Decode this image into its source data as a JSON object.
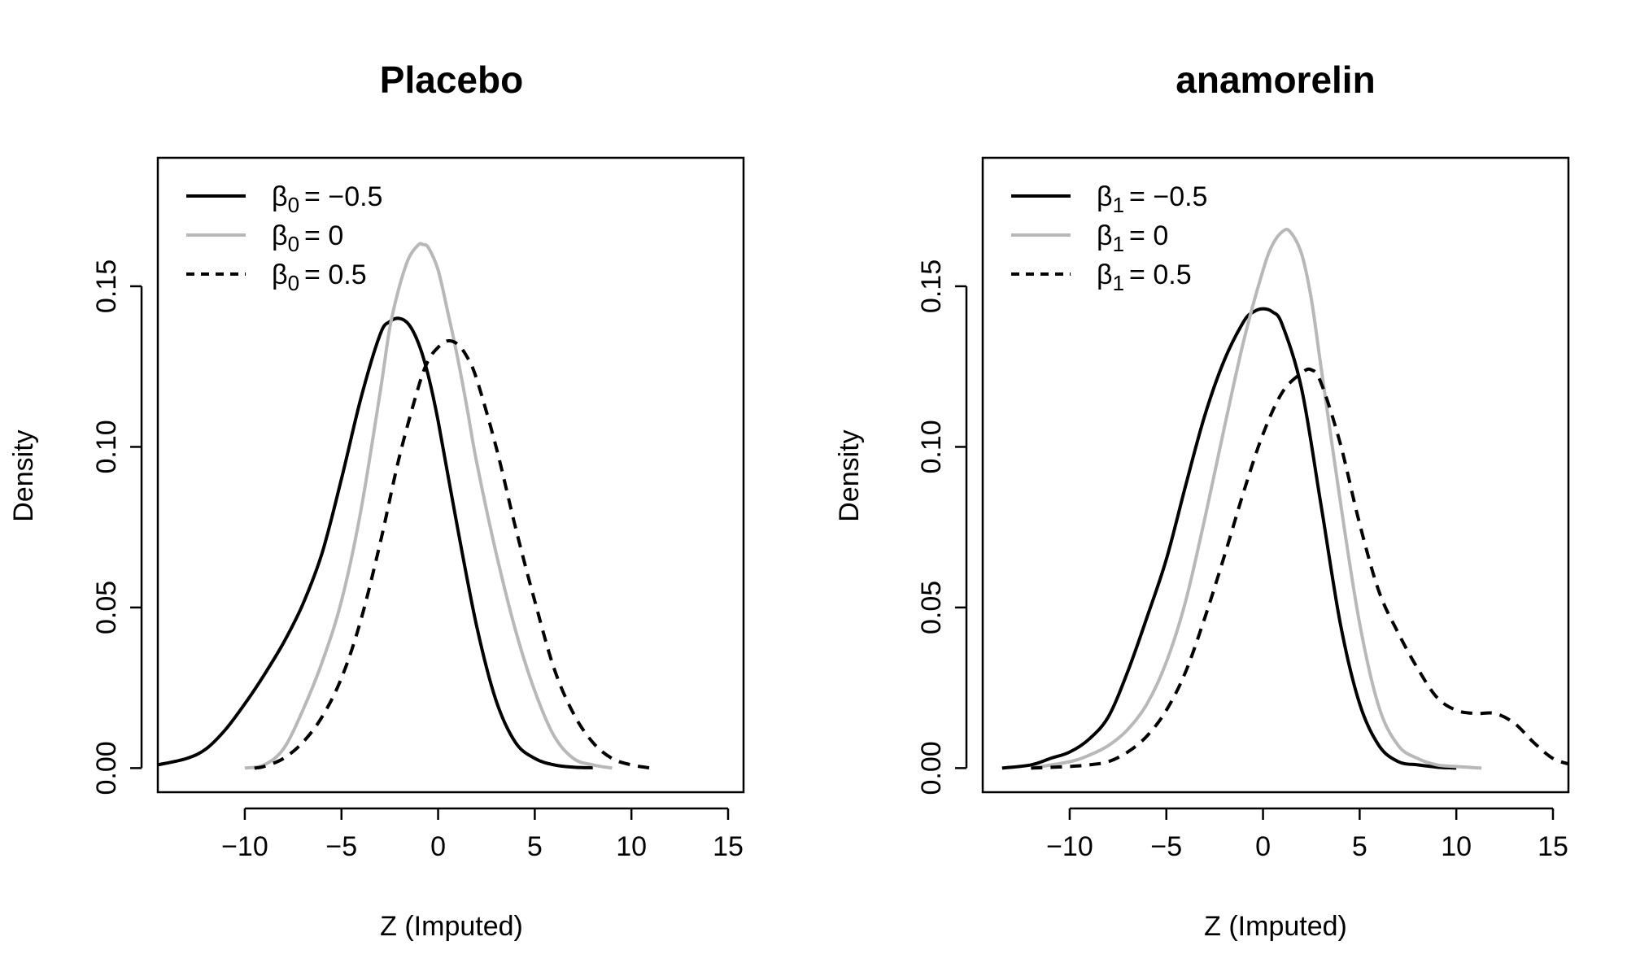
{
  "figure": {
    "background": "#ffffff"
  },
  "chart_data": [
    {
      "type": "line",
      "title": "Placebo",
      "xlabel": "Z (Imputed)",
      "ylabel": "Density",
      "xlim": [
        -14.5,
        15.8
      ],
      "ylim": [
        -0.0075,
        0.19
      ],
      "xticks": [
        -10,
        -5,
        0,
        5,
        10,
        15
      ],
      "xtick_labels": [
        "−10",
        "−5",
        "0",
        "5",
        "10",
        "15"
      ],
      "yticks": [
        0.0,
        0.05,
        0.1,
        0.15
      ],
      "ytick_labels": [
        "0.00",
        "0.05",
        "0.10",
        "0.15"
      ],
      "legend": {
        "position": "top-left"
      },
      "series": [
        {
          "name": "β₀ = −0.5",
          "legend_symbol": "β",
          "legend_sub": "0",
          "legend_value": "= −0.5",
          "color": "#000000",
          "dash": "solid",
          "x": [
            -14.5,
            -13,
            -12,
            -11,
            -10,
            -9,
            -8,
            -7,
            -6,
            -5,
            -4,
            -3,
            -2.5,
            -2,
            -1.5,
            -1,
            -0.5,
            0,
            1,
            2,
            3,
            4,
            5,
            6,
            7,
            8
          ],
          "y": [
            0.001,
            0.003,
            0.006,
            0.012,
            0.02,
            0.029,
            0.039,
            0.051,
            0.067,
            0.09,
            0.115,
            0.135,
            0.139,
            0.14,
            0.138,
            0.132,
            0.122,
            0.108,
            0.075,
            0.044,
            0.021,
            0.008,
            0.003,
            0.001,
            0.0003,
            0.0001
          ]
        },
        {
          "name": "β₀ = 0",
          "legend_symbol": "β",
          "legend_sub": "0",
          "legend_value": "= 0",
          "color": "#b8b8b8",
          "dash": "solid",
          "x": [
            -10,
            -9,
            -8,
            -7,
            -6,
            -5,
            -4,
            -3,
            -2.5,
            -2,
            -1.5,
            -1,
            -0.8,
            -0.5,
            0,
            0.5,
            1,
            1.5,
            2,
            3,
            4,
            5,
            6,
            7,
            8,
            9
          ],
          "y": [
            0.0,
            0.001,
            0.006,
            0.018,
            0.033,
            0.052,
            0.08,
            0.117,
            0.137,
            0.15,
            0.159,
            0.163,
            0.163,
            0.162,
            0.155,
            0.142,
            0.128,
            0.112,
            0.095,
            0.067,
            0.043,
            0.024,
            0.01,
            0.003,
            0.001,
            0.0
          ]
        },
        {
          "name": "β₀ = 0.5",
          "legend_symbol": "β",
          "legend_sub": "0",
          "legend_value": "= 0.5",
          "color": "#000000",
          "dash": "dashed",
          "x": [
            -9.5,
            -9,
            -8,
            -7,
            -6,
            -5,
            -4,
            -3,
            -2,
            -1,
            -0.5,
            0,
            0.5,
            1,
            1.5,
            2,
            3,
            4,
            5,
            6,
            7,
            8,
            9,
            10,
            11
          ],
          "y": [
            0.0,
            0.0005,
            0.003,
            0.008,
            0.016,
            0.028,
            0.046,
            0.07,
            0.097,
            0.119,
            0.127,
            0.131,
            0.133,
            0.132,
            0.128,
            0.121,
            0.1,
            0.075,
            0.052,
            0.031,
            0.017,
            0.008,
            0.003,
            0.001,
            0.0
          ]
        }
      ]
    },
    {
      "type": "line",
      "title": "anamorelin",
      "xlabel": "Z (Imputed)",
      "ylabel": "Density",
      "xlim": [
        -14.5,
        15.8
      ],
      "ylim": [
        -0.0075,
        0.19
      ],
      "xticks": [
        -10,
        -5,
        0,
        5,
        10,
        15
      ],
      "xtick_labels": [
        "−10",
        "−5",
        "0",
        "5",
        "10",
        "15"
      ],
      "yticks": [
        0.0,
        0.05,
        0.1,
        0.15
      ],
      "ytick_labels": [
        "0.00",
        "0.05",
        "0.10",
        "0.15"
      ],
      "legend": {
        "position": "top-left"
      },
      "series": [
        {
          "name": "β₁ = −0.5",
          "legend_symbol": "β",
          "legend_sub": "1",
          "legend_value": "= −0.5",
          "color": "#000000",
          "dash": "solid",
          "x": [
            -13.5,
            -12,
            -11,
            -10,
            -9,
            -8,
            -7,
            -6,
            -5,
            -4,
            -3,
            -2,
            -1,
            -0.5,
            0,
            0.5,
            1,
            2,
            3,
            4,
            5,
            6,
            7,
            8,
            9,
            10
          ],
          "y": [
            0.0,
            0.001,
            0.003,
            0.005,
            0.009,
            0.016,
            0.03,
            0.047,
            0.065,
            0.088,
            0.11,
            0.127,
            0.139,
            0.142,
            0.143,
            0.142,
            0.138,
            0.118,
            0.082,
            0.045,
            0.02,
            0.007,
            0.002,
            0.001,
            0.0003,
            0.0
          ]
        },
        {
          "name": "β₁ = 0",
          "legend_symbol": "β",
          "legend_sub": "1",
          "legend_value": "= 0",
          "color": "#b8b8b8",
          "dash": "solid",
          "x": [
            -12,
            -10,
            -9,
            -8,
            -7,
            -6,
            -5,
            -4,
            -3,
            -2,
            -1,
            0,
            0.5,
            1,
            1.4,
            2,
            2.5,
            3,
            4,
            5,
            6,
            7,
            8,
            9,
            10,
            11.3
          ],
          "y": [
            0.0,
            0.002,
            0.004,
            0.007,
            0.012,
            0.02,
            0.033,
            0.052,
            0.078,
            0.106,
            0.133,
            0.155,
            0.163,
            0.167,
            0.167,
            0.16,
            0.146,
            0.125,
            0.083,
            0.045,
            0.019,
            0.007,
            0.003,
            0.001,
            0.0005,
            0.0
          ]
        },
        {
          "name": "β₁ = 0.5",
          "legend_symbol": "β",
          "legend_sub": "1",
          "legend_value": "= 0.5",
          "color": "#000000",
          "dash": "dashed",
          "x": [
            -12,
            -10,
            -9,
            -8,
            -7,
            -6,
            -5,
            -4,
            -3,
            -2,
            -1,
            0,
            1,
            2,
            2.5,
            3,
            4,
            5,
            6,
            7,
            8,
            9,
            10,
            11,
            12,
            13,
            14,
            15,
            16
          ],
          "y": [
            0.0,
            0.0005,
            0.001,
            0.002,
            0.005,
            0.01,
            0.018,
            0.03,
            0.047,
            0.066,
            0.086,
            0.104,
            0.117,
            0.123,
            0.124,
            0.12,
            0.101,
            0.076,
            0.055,
            0.042,
            0.031,
            0.022,
            0.018,
            0.017,
            0.017,
            0.014,
            0.008,
            0.003,
            0.001
          ]
        }
      ]
    }
  ]
}
